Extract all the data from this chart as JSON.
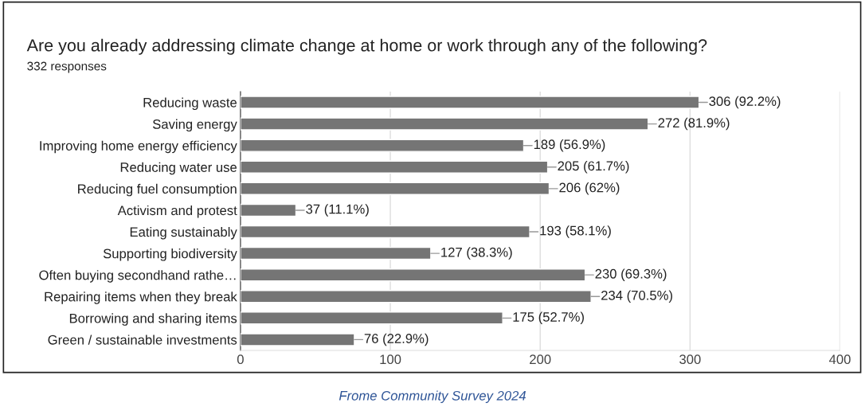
{
  "chart_data": {
    "type": "bar",
    "orientation": "horizontal",
    "title": "Are you already addressing climate change at home or work through any of the following?",
    "subtitle": "332 responses",
    "annotations": [
      "Frome Community Survey 2024"
    ],
    "categories": [
      "Reducing waste",
      "Saving energy",
      "Improving home energy efficiency",
      "Reducing water use",
      "Reducing fuel consumption",
      "Activism and protest",
      "Eating sustainably",
      "Supporting biodiversity",
      "Often buying secondhand rathe…",
      "Repairing items when they break",
      "Borrowing and sharing items",
      "Green / sustainable investments"
    ],
    "values": [
      306,
      272,
      189,
      205,
      206,
      37,
      193,
      127,
      230,
      234,
      175,
      76
    ],
    "value_labels": [
      "306 (92.2%)",
      "272 (81.9%)",
      "189 (56.9%)",
      "205 (61.7%)",
      "206 (62%)",
      "37 (11.1%)",
      "193 (58.1%)",
      "127 (38.3%)",
      "230 (69.3%)",
      "234 (70.5%)",
      "175 (52.7%)",
      "76 (22.9%)"
    ],
    "color": "#757575",
    "xlim": [
      0,
      400
    ],
    "xticks": [
      0,
      100,
      200,
      300,
      400
    ],
    "grid": "x"
  }
}
